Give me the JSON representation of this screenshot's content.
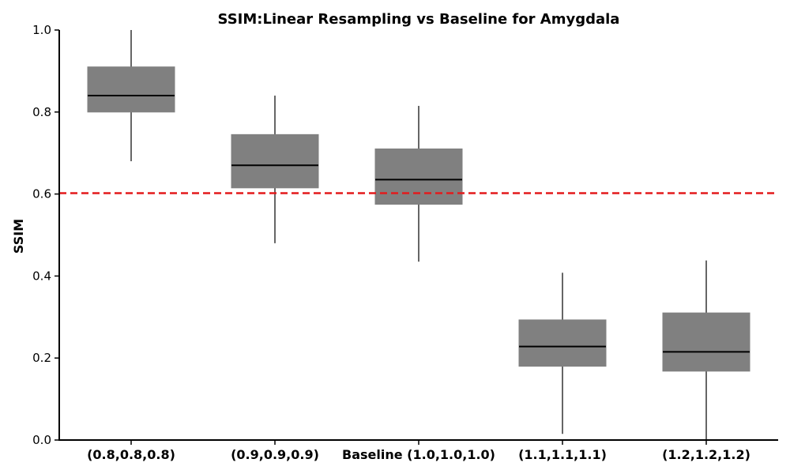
{
  "chart_data": {
    "type": "box",
    "title": "SSIM:Linear Resampling vs Baseline for Amygdala",
    "xlabel": "",
    "ylabel": "SSIM",
    "ylim": [
      0.0,
      1.0
    ],
    "yticks": [
      "0.0",
      "0.2",
      "0.4",
      "0.6",
      "0.8",
      "1.0"
    ],
    "categories": [
      "(0.8,0.8,0.8)",
      "(0.9,0.9,0.9)",
      "Baseline (1.0,1.0,1.0)",
      "(1.1,1.1,1.1)",
      "(1.2,1.2,1.2)"
    ],
    "boxes": [
      {
        "whisker_low": 0.68,
        "q1": 0.8,
        "median": 0.84,
        "q3": 0.91,
        "whisker_high": 1.0
      },
      {
        "whisker_low": 0.48,
        "q1": 0.615,
        "median": 0.67,
        "q3": 0.745,
        "whisker_high": 0.84
      },
      {
        "whisker_low": 0.435,
        "q1": 0.575,
        "median": 0.635,
        "q3": 0.71,
        "whisker_high": 0.815
      },
      {
        "whisker_low": 0.015,
        "q1": 0.18,
        "median": 0.228,
        "q3": 0.293,
        "whisker_high": 0.408
      },
      {
        "whisker_low": 0.0,
        "q1": 0.168,
        "median": 0.215,
        "q3": 0.31,
        "whisker_high": 0.438
      }
    ],
    "reference_line": {
      "value": 0.602,
      "style": "dashed",
      "color": "#e31a1c"
    },
    "box_color": "#808080",
    "grid": false
  }
}
